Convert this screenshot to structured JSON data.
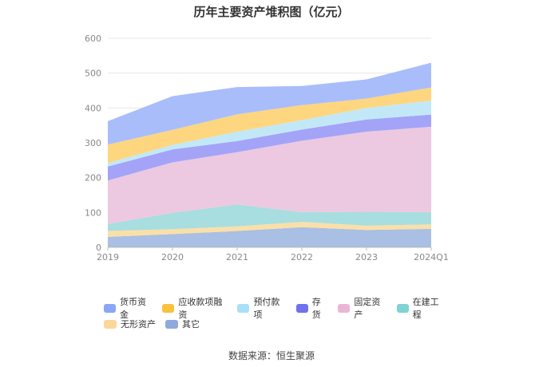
{
  "title": "历年主要资产堆积图（亿元）",
  "source_text": "数据来源：恒生聚源",
  "chart_data": {
    "type": "area",
    "stacked": true,
    "title": "历年主要资产堆积图（亿元）",
    "xlabel": "",
    "ylabel": "",
    "categories": [
      "2019",
      "2020",
      "2021",
      "2022",
      "2023",
      "2024Q1"
    ],
    "ylim": [
      0,
      600
    ],
    "yticks": [
      0,
      100,
      200,
      300,
      400,
      500,
      600
    ],
    "grid": true,
    "legend_position": "bottom",
    "series": [
      {
        "name": "其它",
        "color": "#a9bfe3",
        "values": [
          30,
          38,
          47,
          58,
          50,
          53
        ]
      },
      {
        "name": "无形资产",
        "color": "#fbdfa8",
        "values": [
          17,
          14,
          13,
          15,
          12,
          13
        ]
      },
      {
        "name": "在建工程",
        "color": "#a8dedf",
        "values": [
          20,
          47,
          63,
          28,
          40,
          35
        ]
      },
      {
        "name": "固定资产",
        "color": "#ecc9e0",
        "values": [
          125,
          145,
          150,
          205,
          230,
          245
        ]
      },
      {
        "name": "存货",
        "color": "#a3a4f7",
        "values": [
          40,
          37,
          32,
          32,
          35,
          35
        ]
      },
      {
        "name": "预付款项",
        "color": "#c2e8f8",
        "values": [
          10,
          13,
          27,
          27,
          33,
          40
        ]
      },
      {
        "name": "应收款项融资",
        "color": "#fdd67f",
        "values": [
          53,
          43,
          50,
          43,
          27,
          38
        ]
      },
      {
        "name": "货币资金",
        "color": "#a9bdfb",
        "values": [
          67,
          97,
          78,
          55,
          55,
          71
        ]
      }
    ]
  },
  "legend": {
    "rows": [
      [
        {
          "name": "货币资金",
          "color": "#8aa6f6"
        },
        {
          "name": "应收款项融资",
          "color": "#f9c13e"
        },
        {
          "name": "预付款项",
          "color": "#a9e0f8"
        },
        {
          "name": "存货",
          "color": "#6f72ef"
        },
        {
          "name": "固定资产",
          "color": "#e9b6d6"
        },
        {
          "name": "在建工程",
          "color": "#7fd3d3"
        }
      ],
      [
        {
          "name": "无形资产",
          "color": "#fbd89a"
        },
        {
          "name": "其它",
          "color": "#8fa9dc"
        }
      ]
    ]
  }
}
